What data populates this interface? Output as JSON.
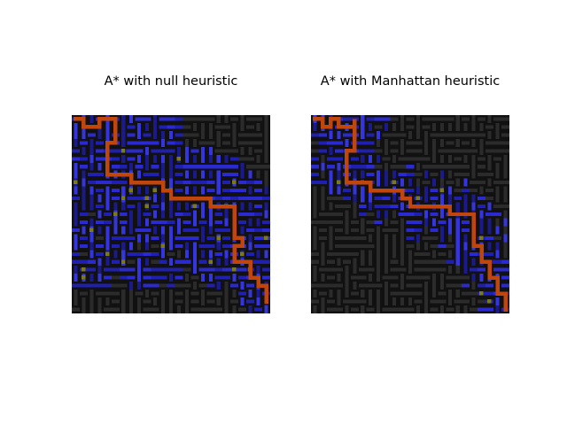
{
  "figure": {
    "panels": [
      {
        "title": "A* with null heuristic",
        "explored_extent": "wide",
        "colors": {
          "wall": "#111111",
          "unexplored": "#2b2b2b",
          "explored": "#2a2ad0",
          "frontier": "#7a7a1a",
          "path": "#c0460e"
        }
      },
      {
        "title": "A* with Manhattan heuristic",
        "explored_extent": "narrow",
        "colors": {
          "wall": "#111111",
          "unexplored": "#2b2b2b",
          "explored": "#2a2ad0",
          "frontier": "#7a7a1a",
          "path": "#c0460e"
        }
      }
    ]
  }
}
